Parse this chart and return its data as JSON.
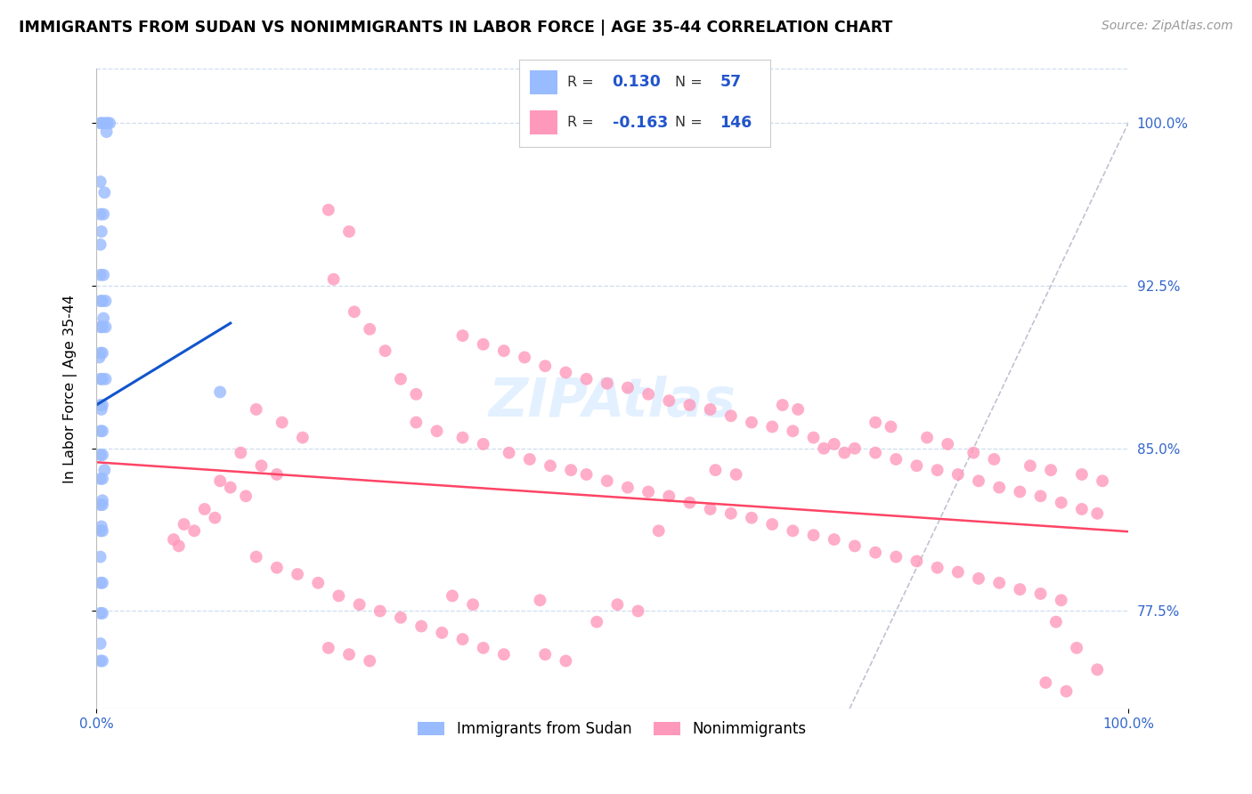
{
  "title": "IMMIGRANTS FROM SUDAN VS NONIMMIGRANTS IN LABOR FORCE | AGE 35-44 CORRELATION CHART",
  "source": "Source: ZipAtlas.com",
  "ylabel": "In Labor Force | Age 35-44",
  "ytick_labels": [
    "77.5%",
    "85.0%",
    "92.5%",
    "100.0%"
  ],
  "ytick_values": [
    0.775,
    0.85,
    0.925,
    1.0
  ],
  "xlim": [
    0.0,
    1.0
  ],
  "ylim": [
    0.73,
    1.025
  ],
  "blue_color": "#99BBFF",
  "pink_color": "#FF99BB",
  "trend_blue": "#1155CC",
  "trend_pink": "#FF4466",
  "diagonal_color": "#BBBBCC",
  "legend_label1": "Immigrants from Sudan",
  "legend_label2": "Nonimmigrants",
  "blue_r": "0.130",
  "blue_n": "57",
  "pink_r": "-0.163",
  "pink_n": "146"
}
